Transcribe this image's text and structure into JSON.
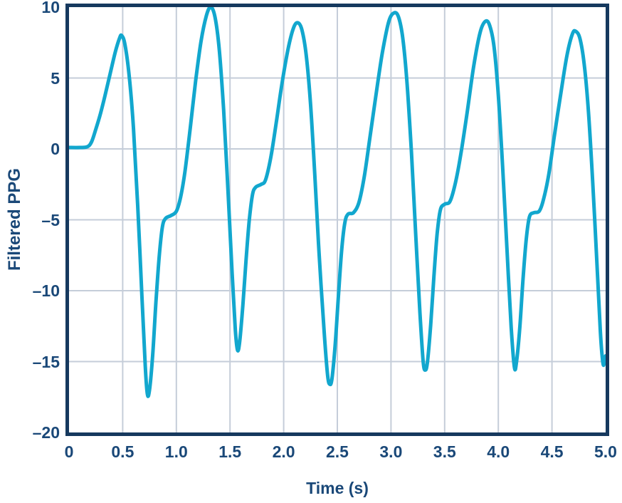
{
  "chart_data": {
    "type": "line",
    "title": "",
    "xlabel": "Time (s)",
    "ylabel": "Filtered PPG",
    "xlim": [
      0,
      5
    ],
    "ylim": [
      -20,
      10
    ],
    "grid": true,
    "legend": "none",
    "x_tick_values": [
      0,
      0.5,
      1,
      1.5,
      2,
      2.5,
      3,
      3.5,
      4,
      4.5,
      5
    ],
    "x_tick_labels": [
      "0",
      "0.5",
      "1.0",
      "1.5",
      "2.0",
      "2.5",
      "3.0",
      "3.5",
      "4.0",
      "4.5",
      "5.0"
    ],
    "y_tick_values": [
      10,
      5,
      0,
      -5,
      -10,
      -15,
      -20
    ],
    "y_tick_labels": [
      "10",
      "5",
      "0",
      "–5",
      "–10",
      "–15",
      "–20"
    ],
    "colors": {
      "line": "#12A7CE",
      "axis_frame": "#16395E",
      "gridline": "#C5CDD9",
      "label_text": "#1A4878",
      "background": "#FFFFFF"
    },
    "series": [
      {
        "name": "Filtered PPG",
        "color": "#12A7CE",
        "points": [
          [
            0.0,
            0.1
          ],
          [
            0.1,
            0.1
          ],
          [
            0.17,
            0.15
          ],
          [
            0.21,
            0.5
          ],
          [
            0.25,
            1.4
          ],
          [
            0.29,
            2.4
          ],
          [
            0.33,
            3.6
          ],
          [
            0.38,
            5.2
          ],
          [
            0.43,
            6.8
          ],
          [
            0.47,
            7.8
          ],
          [
            0.49,
            8.0
          ],
          [
            0.52,
            7.4
          ],
          [
            0.56,
            5.2
          ],
          [
            0.6,
            1.5
          ],
          [
            0.64,
            -4.0
          ],
          [
            0.68,
            -10.5
          ],
          [
            0.71,
            -15.3
          ],
          [
            0.73,
            -17.3
          ],
          [
            0.75,
            -17.0
          ],
          [
            0.78,
            -14.5
          ],
          [
            0.81,
            -10.8
          ],
          [
            0.84,
            -7.6
          ],
          [
            0.87,
            -5.5
          ],
          [
            0.9,
            -4.9
          ],
          [
            0.95,
            -4.7
          ],
          [
            1.0,
            -4.4
          ],
          [
            1.04,
            -3.4
          ],
          [
            1.08,
            -1.6
          ],
          [
            1.13,
            1.5
          ],
          [
            1.18,
            4.8
          ],
          [
            1.23,
            7.6
          ],
          [
            1.28,
            9.4
          ],
          [
            1.32,
            10.0
          ],
          [
            1.36,
            9.3
          ],
          [
            1.4,
            7.0
          ],
          [
            1.44,
            2.8
          ],
          [
            1.48,
            -2.8
          ],
          [
            1.52,
            -8.8
          ],
          [
            1.55,
            -12.8
          ],
          [
            1.57,
            -14.2
          ],
          [
            1.59,
            -13.6
          ],
          [
            1.62,
            -11.0
          ],
          [
            1.65,
            -7.8
          ],
          [
            1.68,
            -5.0
          ],
          [
            1.71,
            -3.2
          ],
          [
            1.74,
            -2.7
          ],
          [
            1.79,
            -2.5
          ],
          [
            1.83,
            -2.2
          ],
          [
            1.88,
            -0.6
          ],
          [
            1.93,
            1.8
          ],
          [
            1.98,
            4.4
          ],
          [
            2.04,
            7.0
          ],
          [
            2.09,
            8.5
          ],
          [
            2.13,
            8.9
          ],
          [
            2.17,
            8.4
          ],
          [
            2.21,
            6.6
          ],
          [
            2.25,
            3.2
          ],
          [
            2.29,
            -1.8
          ],
          [
            2.33,
            -7.4
          ],
          [
            2.38,
            -13.2
          ],
          [
            2.41,
            -16.0
          ],
          [
            2.43,
            -16.6
          ],
          [
            2.45,
            -16.2
          ],
          [
            2.48,
            -13.8
          ],
          [
            2.51,
            -10.4
          ],
          [
            2.54,
            -7.2
          ],
          [
            2.57,
            -5.2
          ],
          [
            2.6,
            -4.6
          ],
          [
            2.65,
            -4.5
          ],
          [
            2.7,
            -3.8
          ],
          [
            2.75,
            -2.0
          ],
          [
            2.8,
            0.6
          ],
          [
            2.86,
            3.8
          ],
          [
            2.92,
            6.8
          ],
          [
            2.98,
            9.0
          ],
          [
            3.03,
            9.6
          ],
          [
            3.07,
            9.3
          ],
          [
            3.11,
            7.8
          ],
          [
            3.15,
            4.6
          ],
          [
            3.19,
            -0.2
          ],
          [
            3.23,
            -6.0
          ],
          [
            3.27,
            -11.6
          ],
          [
            3.3,
            -15.0
          ],
          [
            3.32,
            -15.6
          ],
          [
            3.34,
            -15.0
          ],
          [
            3.37,
            -12.4
          ],
          [
            3.4,
            -9.0
          ],
          [
            3.43,
            -6.0
          ],
          [
            3.46,
            -4.3
          ],
          [
            3.5,
            -3.9
          ],
          [
            3.55,
            -3.7
          ],
          [
            3.6,
            -2.4
          ],
          [
            3.65,
            -0.4
          ],
          [
            3.71,
            2.6
          ],
          [
            3.77,
            5.8
          ],
          [
            3.83,
            8.2
          ],
          [
            3.88,
            9.0
          ],
          [
            3.92,
            8.7
          ],
          [
            3.96,
            7.2
          ],
          [
            4.0,
            3.8
          ],
          [
            4.04,
            -1.2
          ],
          [
            4.08,
            -7.0
          ],
          [
            4.12,
            -12.6
          ],
          [
            4.15,
            -15.4
          ],
          [
            4.17,
            -15.0
          ],
          [
            4.2,
            -12.6
          ],
          [
            4.23,
            -9.2
          ],
          [
            4.26,
            -6.4
          ],
          [
            4.29,
            -4.8
          ],
          [
            4.33,
            -4.5
          ],
          [
            4.38,
            -4.4
          ],
          [
            4.42,
            -3.6
          ],
          [
            4.47,
            -1.8
          ],
          [
            4.52,
            0.8
          ],
          [
            4.58,
            3.8
          ],
          [
            4.64,
            6.6
          ],
          [
            4.69,
            8.1
          ],
          [
            4.72,
            8.3
          ],
          [
            4.76,
            7.8
          ],
          [
            4.8,
            6.0
          ],
          [
            4.84,
            2.6
          ],
          [
            4.88,
            -2.4
          ],
          [
            4.92,
            -8.2
          ],
          [
            4.95,
            -12.8
          ],
          [
            4.975,
            -15.1
          ],
          [
            4.99,
            -15.0
          ],
          [
            5.0,
            -14.6
          ]
        ]
      }
    ]
  }
}
